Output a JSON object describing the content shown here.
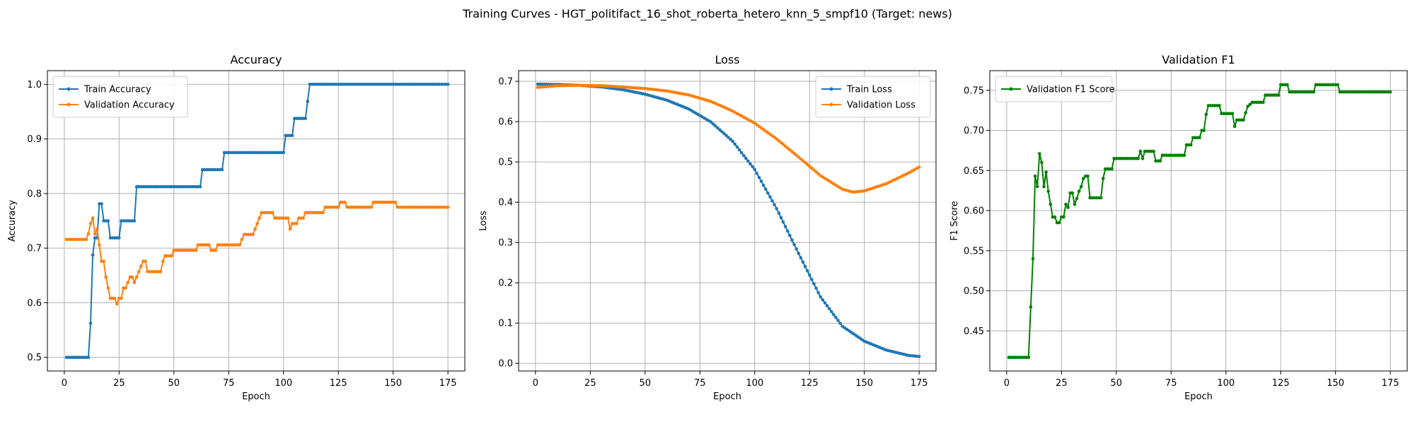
{
  "figure": {
    "title": "Training Curves - HGT_politifact_16_shot_roberta_hetero_knn_5_smpf10 (Target: news)"
  },
  "colors": {
    "blue": "#1f77b4",
    "orange": "#ff7f0e",
    "green": "#008000",
    "grid": "#b0b0b0"
  },
  "chart_data": [
    {
      "type": "line",
      "title": "Accuracy",
      "xlabel": "Epoch",
      "ylabel": "Accuracy",
      "xlim": [
        -7.7,
        182.7
      ],
      "ylim": [
        0.475,
        1.025
      ],
      "xticks": [
        0,
        25,
        50,
        75,
        100,
        125,
        150,
        175
      ],
      "yticks": [
        0.5,
        0.6,
        0.7,
        0.8,
        0.9,
        1.0
      ],
      "ytick_labels": [
        "0.5",
        "0.6",
        "0.7",
        "0.8",
        "0.9",
        "1.0"
      ],
      "grid": true,
      "legend_position": "upper left",
      "series": [
        {
          "name": "Train Accuracy",
          "color": "#1f77b4",
          "points": [
            [
              1,
              0.5
            ],
            [
              11,
              0.5
            ],
            [
              12,
              0.5625
            ],
            [
              13,
              0.6875
            ],
            [
              14,
              0.71875
            ],
            [
              15,
              0.71875
            ],
            [
              16,
              0.78125
            ],
            [
              17,
              0.78125
            ],
            [
              18,
              0.75
            ],
            [
              20,
              0.75
            ],
            [
              21,
              0.71875
            ],
            [
              25,
              0.71875
            ],
            [
              26,
              0.75
            ],
            [
              32,
              0.75
            ],
            [
              33,
              0.8125
            ],
            [
              62,
              0.8125
            ],
            [
              63,
              0.84375
            ],
            [
              72,
              0.84375
            ],
            [
              73,
              0.875
            ],
            [
              100,
              0.875
            ],
            [
              101,
              0.90625
            ],
            [
              104,
              0.90625
            ],
            [
              105,
              0.9375
            ],
            [
              110,
              0.9375
            ],
            [
              111,
              0.96875
            ],
            [
              112,
              1.0
            ],
            [
              175,
              1.0
            ]
          ]
        },
        {
          "name": "Validation Accuracy",
          "color": "#ff7f0e",
          "points": [
            [
              1,
              0.716
            ],
            [
              10,
              0.716
            ],
            [
              11,
              0.726
            ],
            [
              12,
              0.745
            ],
            [
              13,
              0.755
            ],
            [
              14,
              0.726
            ],
            [
              15,
              0.735
            ],
            [
              16,
              0.706
            ],
            [
              17,
              0.676
            ],
            [
              18,
              0.676
            ],
            [
              19,
              0.647
            ],
            [
              20,
              0.627
            ],
            [
              21,
              0.608
            ],
            [
              23,
              0.608
            ],
            [
              24,
              0.598
            ],
            [
              25,
              0.608
            ],
            [
              26,
              0.608
            ],
            [
              27,
              0.627
            ],
            [
              28,
              0.627
            ],
            [
              29,
              0.637
            ],
            [
              30,
              0.647
            ],
            [
              31,
              0.647
            ],
            [
              32,
              0.637
            ],
            [
              33,
              0.647
            ],
            [
              34,
              0.657
            ],
            [
              35,
              0.667
            ],
            [
              36,
              0.676
            ],
            [
              37,
              0.676
            ],
            [
              38,
              0.657
            ],
            [
              44,
              0.657
            ],
            [
              45,
              0.676
            ],
            [
              46,
              0.686
            ],
            [
              49,
              0.686
            ],
            [
              50,
              0.696
            ],
            [
              60,
              0.696
            ],
            [
              61,
              0.706
            ],
            [
              66,
              0.706
            ],
            [
              67,
              0.696
            ],
            [
              69,
              0.696
            ],
            [
              70,
              0.706
            ],
            [
              80,
              0.706
            ],
            [
              81,
              0.716
            ],
            [
              82,
              0.725
            ],
            [
              86,
              0.725
            ],
            [
              87,
              0.735
            ],
            [
              88,
              0.745
            ],
            [
              89,
              0.755
            ],
            [
              90,
              0.765
            ],
            [
              95,
              0.765
            ],
            [
              96,
              0.755
            ],
            [
              102,
              0.755
            ],
            [
              103,
              0.735
            ],
            [
              104,
              0.745
            ],
            [
              106,
              0.745
            ],
            [
              107,
              0.755
            ],
            [
              109,
              0.755
            ],
            [
              110,
              0.765
            ],
            [
              118,
              0.765
            ],
            [
              119,
              0.775
            ],
            [
              125,
              0.775
            ],
            [
              126,
              0.784
            ],
            [
              128,
              0.784
            ],
            [
              129,
              0.775
            ],
            [
              140,
              0.775
            ],
            [
              141,
              0.784
            ],
            [
              151,
              0.784
            ],
            [
              152,
              0.775
            ],
            [
              175,
              0.775
            ]
          ]
        }
      ]
    },
    {
      "type": "line",
      "title": "Loss",
      "xlabel": "Epoch",
      "ylabel": "Loss",
      "xlim": [
        -7.7,
        182.7
      ],
      "ylim": [
        -0.0189,
        0.7264
      ],
      "xticks": [
        0,
        25,
        50,
        75,
        100,
        125,
        150,
        175
      ],
      "yticks": [
        0.0,
        0.1,
        0.2,
        0.3,
        0.4,
        0.5,
        0.6,
        0.7
      ],
      "ytick_labels": [
        "0.0",
        "0.1",
        "0.2",
        "0.3",
        "0.4",
        "0.5",
        "0.6",
        "0.7"
      ],
      "grid": true,
      "legend_position": "upper right",
      "series": [
        {
          "name": "Train Loss",
          "color": "#1f77b4",
          "points": [
            [
              1,
              0.693
            ],
            [
              10,
              0.692
            ],
            [
              20,
              0.69
            ],
            [
              30,
              0.686
            ],
            [
              40,
              0.679
            ],
            [
              50,
              0.668
            ],
            [
              60,
              0.653
            ],
            [
              70,
              0.631
            ],
            [
              80,
              0.599
            ],
            [
              90,
              0.551
            ],
            [
              100,
              0.481
            ],
            [
              110,
              0.384
            ],
            [
              120,
              0.273
            ],
            [
              130,
              0.165
            ],
            [
              140,
              0.092
            ],
            [
              150,
              0.055
            ],
            [
              160,
              0.033
            ],
            [
              170,
              0.02
            ],
            [
              175,
              0.017
            ]
          ]
        },
        {
          "name": "Validation Loss",
          "color": "#ff7f0e",
          "points": [
            [
              1,
              0.685
            ],
            [
              10,
              0.689
            ],
            [
              20,
              0.69
            ],
            [
              30,
              0.689
            ],
            [
              40,
              0.686
            ],
            [
              50,
              0.682
            ],
            [
              60,
              0.676
            ],
            [
              70,
              0.666
            ],
            [
              80,
              0.65
            ],
            [
              90,
              0.626
            ],
            [
              100,
              0.596
            ],
            [
              110,
              0.557
            ],
            [
              120,
              0.512
            ],
            [
              130,
              0.466
            ],
            [
              140,
              0.432
            ],
            [
              145,
              0.425
            ],
            [
              150,
              0.428
            ],
            [
              160,
              0.446
            ],
            [
              170,
              0.472
            ],
            [
              175,
              0.487
            ]
          ]
        }
      ]
    },
    {
      "type": "line",
      "title": "Validation F1",
      "xlabel": "Epoch",
      "ylabel": "F1 Score",
      "xlim": [
        -7.7,
        182.7
      ],
      "ylim": [
        0.4,
        0.7745
      ],
      "xticks": [
        0,
        25,
        50,
        75,
        100,
        125,
        150,
        175
      ],
      "yticks": [
        0.45,
        0.5,
        0.55,
        0.6,
        0.65,
        0.7,
        0.75
      ],
      "ytick_labels": [
        "0.45",
        "0.50",
        "0.55",
        "0.60",
        "0.65",
        "0.70",
        "0.75"
      ],
      "grid": true,
      "legend_position": "upper left",
      "series": [
        {
          "name": "Validation F1 Score",
          "color": "#008000",
          "points": [
            [
              1,
              0.417
            ],
            [
              10,
              0.417
            ],
            [
              11,
              0.48
            ],
            [
              12,
              0.54
            ],
            [
              13,
              0.643
            ],
            [
              14,
              0.63
            ],
            [
              15,
              0.671
            ],
            [
              16,
              0.66
            ],
            [
              17,
              0.63
            ],
            [
              18,
              0.648
            ],
            [
              19,
              0.624
            ],
            [
              20,
              0.608
            ],
            [
              21,
              0.592
            ],
            [
              22,
              0.592
            ],
            [
              23,
              0.585
            ],
            [
              24,
              0.585
            ],
            [
              25,
              0.592
            ],
            [
              26,
              0.592
            ],
            [
              27,
              0.608
            ],
            [
              28,
              0.604
            ],
            [
              29,
              0.622
            ],
            [
              30,
              0.622
            ],
            [
              31,
              0.608
            ],
            [
              32,
              0.615
            ],
            [
              33,
              0.624
            ],
            [
              34,
              0.63
            ],
            [
              35,
              0.64
            ],
            [
              36,
              0.643
            ],
            [
              37,
              0.643
            ],
            [
              38,
              0.616
            ],
            [
              43,
              0.616
            ],
            [
              44,
              0.64
            ],
            [
              45,
              0.652
            ],
            [
              48,
              0.652
            ],
            [
              49,
              0.665
            ],
            [
              60,
              0.665
            ],
            [
              61,
              0.674
            ],
            [
              62,
              0.665
            ],
            [
              63,
              0.674
            ],
            [
              67,
              0.674
            ],
            [
              68,
              0.662
            ],
            [
              70,
              0.662
            ],
            [
              71,
              0.669
            ],
            [
              81,
              0.669
            ],
            [
              82,
              0.682
            ],
            [
              84,
              0.682
            ],
            [
              85,
              0.691
            ],
            [
              88,
              0.691
            ],
            [
              89,
              0.7
            ],
            [
              90,
              0.7
            ],
            [
              91,
              0.72
            ],
            [
              92,
              0.731
            ],
            [
              97,
              0.731
            ],
            [
              98,
              0.721
            ],
            [
              103,
              0.721
            ],
            [
              104,
              0.705
            ],
            [
              105,
              0.713
            ],
            [
              108,
              0.713
            ],
            [
              109,
              0.722
            ],
            [
              110,
              0.73
            ],
            [
              112,
              0.735
            ],
            [
              117,
              0.735
            ],
            [
              118,
              0.744
            ],
            [
              124,
              0.744
            ],
            [
              125,
              0.757
            ],
            [
              128,
              0.757
            ],
            [
              129,
              0.748
            ],
            [
              140,
              0.748
            ],
            [
              141,
              0.757
            ],
            [
              151,
              0.757
            ],
            [
              152,
              0.748
            ],
            [
              175,
              0.748
            ]
          ]
        }
      ]
    }
  ]
}
